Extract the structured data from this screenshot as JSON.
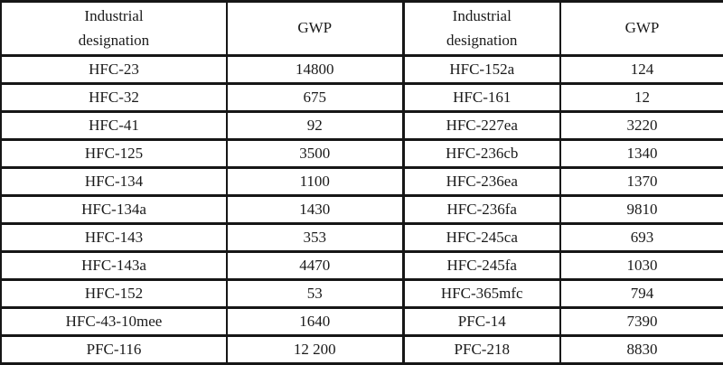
{
  "table": {
    "title_semantic": "GWP values of HFC and PFC refrigerants",
    "headers": [
      "Industrial\ndesignation",
      "GWP",
      "Industrial\ndesignation",
      "GWP"
    ],
    "rows": [
      [
        "HFC-23",
        "14800",
        "HFC-152a",
        "124"
      ],
      [
        "HFC-32",
        "675",
        "HFC-161",
        "12"
      ],
      [
        "HFC-41",
        "92",
        "HFC-227ea",
        "3220"
      ],
      [
        "HFC-125",
        "3500",
        "HFC-236cb",
        "1340"
      ],
      [
        "HFC-134",
        "1100",
        "HFC-236ea",
        "1370"
      ],
      [
        "HFC-134a",
        "1430",
        "HFC-236fa",
        "9810"
      ],
      [
        "HFC-143",
        "353",
        "HFC-245ca",
        "693"
      ],
      [
        "HFC-143a",
        "4470",
        "HFC-245fa",
        "1030"
      ],
      [
        "HFC-152",
        "53",
        "HFC-365mfc",
        "794"
      ],
      [
        "HFC-43-10mee",
        "1640",
        "PFC-14",
        "7390"
      ],
      [
        "PFC-116",
        "12 200",
        "PFC-218",
        "8830"
      ]
    ]
  },
  "colors": {
    "border": "#161616",
    "text": "#1a1a1a",
    "background": "#fbfbfa"
  }
}
